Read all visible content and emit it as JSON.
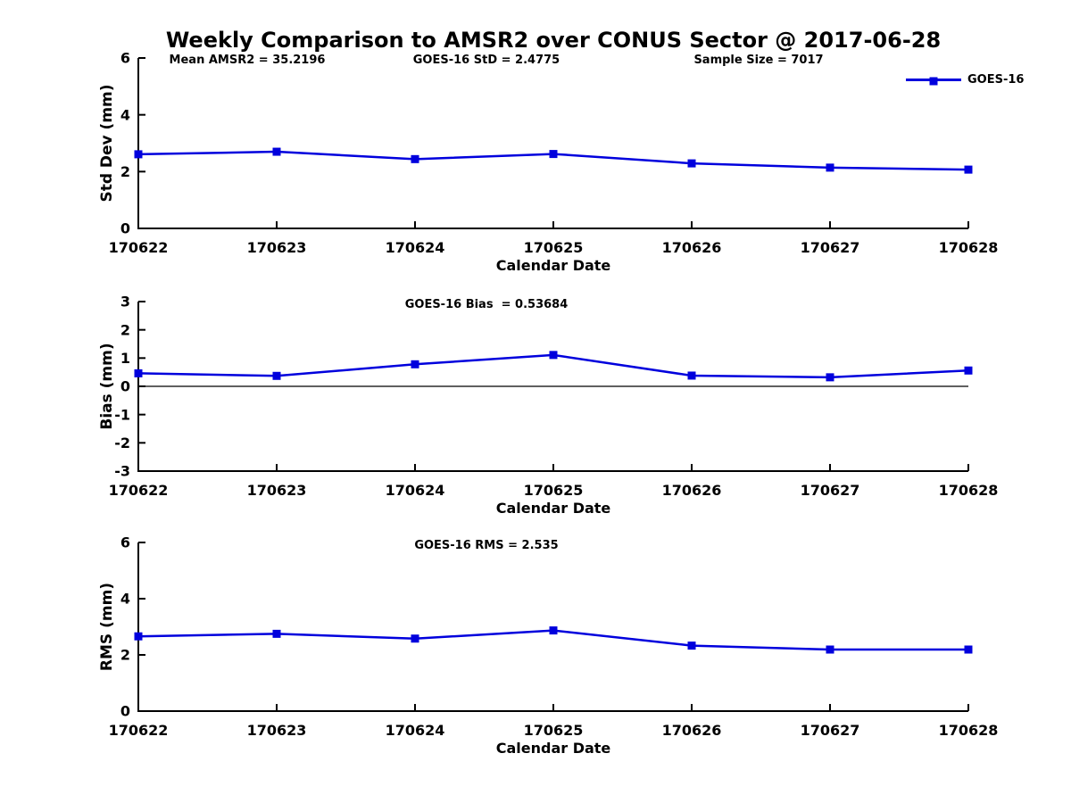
{
  "header": {
    "title": "Weekly Comparison to AMSR2 over CONUS Sector @ 2017-06-28",
    "stats": [
      "Mean AMSR2 = 35.2196",
      "GOES-16 StD = 2.4775",
      "Sample Size = 7017"
    ]
  },
  "legend": {
    "label": "GOES-16"
  },
  "colors": {
    "line": "#0000dd",
    "axis": "#000000",
    "text": "#000000",
    "background": "#ffffff"
  },
  "chart_data": [
    {
      "type": "line",
      "ylabel": "Std Dev (mm)",
      "xlabel": "Calendar Date",
      "annotation": "",
      "categories": [
        "170622",
        "170623",
        "170624",
        "170625",
        "170626",
        "170627",
        "170628"
      ],
      "ylim": [
        0,
        6
      ],
      "yticks": [
        0,
        2,
        4,
        6
      ],
      "zero_line": false,
      "grid": false,
      "legend_position": "top-right",
      "series": [
        {
          "name": "GOES-16",
          "marker": "square",
          "values": [
            2.61,
            2.7,
            2.44,
            2.62,
            2.29,
            2.14,
            2.07
          ]
        }
      ]
    },
    {
      "type": "line",
      "ylabel": "Bias (mm)",
      "xlabel": "Calendar Date",
      "annotation": "GOES-16 Bias  = 0.53684",
      "categories": [
        "170622",
        "170623",
        "170624",
        "170625",
        "170626",
        "170627",
        "170628"
      ],
      "ylim": [
        -3,
        3
      ],
      "yticks": [
        -3,
        -2,
        -1,
        0,
        1,
        2,
        3
      ],
      "zero_line": true,
      "grid": false,
      "legend_position": "none",
      "series": [
        {
          "name": "GOES-16",
          "marker": "square",
          "values": [
            0.46,
            0.37,
            0.78,
            1.11,
            0.38,
            0.32,
            0.56
          ]
        }
      ]
    },
    {
      "type": "line",
      "ylabel": "RMS (mm)",
      "xlabel": "Calendar Date",
      "annotation": "GOES-16 RMS = 2.535",
      "categories": [
        "170622",
        "170623",
        "170624",
        "170625",
        "170626",
        "170627",
        "170628"
      ],
      "ylim": [
        0,
        6
      ],
      "yticks": [
        0,
        2,
        4,
        6
      ],
      "zero_line": false,
      "grid": false,
      "legend_position": "none",
      "series": [
        {
          "name": "GOES-16",
          "marker": "square",
          "values": [
            2.66,
            2.75,
            2.58,
            2.87,
            2.33,
            2.19,
            2.19
          ]
        }
      ]
    }
  ]
}
